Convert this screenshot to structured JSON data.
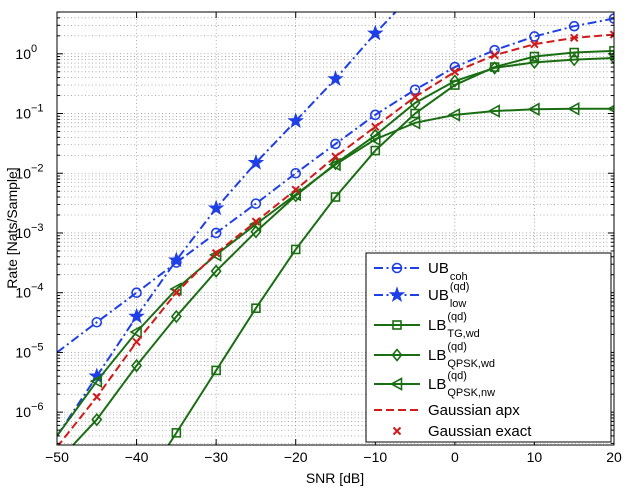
{
  "chart_data": {
    "type": "line",
    "title": "",
    "xlabel": "SNR [dB]",
    "ylabel": "Rate [Nats/Sample]",
    "xlim": [
      -50,
      20
    ],
    "ylim_log10": [
      -6.55,
      0.7
    ],
    "yscale": "log",
    "grid": true,
    "legend_position": "bottom-right",
    "x_ticks": [
      -50,
      -40,
      -30,
      -20,
      -10,
      0,
      10,
      20
    ],
    "x_tick_labels": [
      "−50",
      "−40",
      "−30",
      "−20",
      "−10",
      "0",
      "10",
      "20"
    ],
    "y_tick_exponents": [
      -6,
      -5,
      -4,
      -3,
      -2,
      -1,
      0
    ],
    "y_tick_base": "10",
    "series": [
      {
        "name": "UB",
        "sub": "coh",
        "sup": "",
        "color": "#1f3fe6",
        "dash": "dashdot",
        "marker": "circle",
        "line_x": [
          -50,
          -45,
          -40,
          -35,
          -30,
          -25,
          -20,
          -15,
          -10,
          -5,
          0,
          5,
          10,
          15,
          20
        ],
        "line_y": [
          1e-05,
          3.2e-05,
          0.0001,
          0.00032,
          0.001,
          0.0031,
          0.01,
          0.031,
          0.095,
          0.25,
          0.6,
          1.15,
          1.95,
          2.9,
          3.9
        ],
        "marker_x": [
          -45,
          -40,
          -35,
          -30,
          -25,
          -20,
          -15,
          -10,
          -5,
          0,
          5,
          10,
          15,
          20
        ],
        "marker_y": [
          3.2e-05,
          0.0001,
          0.00032,
          0.001,
          0.0031,
          0.01,
          0.031,
          0.095,
          0.25,
          0.6,
          1.15,
          1.95,
          2.9,
          3.9
        ]
      },
      {
        "name": "UB",
        "sub": "low",
        "sup": "(qd)",
        "color": "#1f3fe6",
        "dash": "dashdot",
        "marker": "star",
        "line_x": [
          -50,
          -45,
          -40,
          -35,
          -30,
          -25,
          -20,
          -15,
          -10,
          -6
        ],
        "line_y": [
          4e-07,
          4e-06,
          4e-05,
          0.00035,
          0.0026,
          0.015,
          0.075,
          0.38,
          2.2,
          8.0
        ],
        "marker_x": [
          -45,
          -40,
          -35,
          -30,
          -25,
          -20,
          -15,
          -10
        ],
        "marker_y": [
          4e-06,
          4e-05,
          0.00035,
          0.0026,
          0.015,
          0.075,
          0.38,
          2.2
        ]
      },
      {
        "name": "LB",
        "sub": "TG,wd",
        "sup": "(qd)",
        "color": "#1a6e12",
        "dash": "solid",
        "marker": "square",
        "line_x": [
          -36,
          -35,
          -30,
          -25,
          -20,
          -15,
          -10,
          -5,
          0,
          5,
          10,
          15,
          20
        ],
        "line_y": [
          2.8e-07,
          4.5e-07,
          5e-06,
          5.5e-05,
          0.00053,
          0.004,
          0.024,
          0.1,
          0.3,
          0.6,
          0.9,
          1.05,
          1.12
        ],
        "marker_x": [
          -35,
          -30,
          -25,
          -20,
          -15,
          -10,
          -5,
          0,
          5,
          10,
          15,
          20
        ],
        "marker_y": [
          4.5e-07,
          5e-06,
          5.5e-05,
          0.00053,
          0.004,
          0.024,
          0.1,
          0.3,
          0.6,
          0.9,
          1.05,
          1.12
        ]
      },
      {
        "name": "LB",
        "sub": "QPSK,wd",
        "sup": "(qd)",
        "color": "#1a6e12",
        "dash": "solid",
        "marker": "diamond",
        "line_x": [
          -48,
          -45,
          -40,
          -35,
          -30,
          -25,
          -20,
          -15,
          -10,
          -5,
          0,
          5,
          10,
          15,
          20
        ],
        "line_y": [
          2.8e-07,
          7.5e-07,
          6e-06,
          4e-05,
          0.00023,
          0.00105,
          0.0042,
          0.0145,
          0.043,
          0.15,
          0.35,
          0.58,
          0.72,
          0.8,
          0.85
        ],
        "marker_x": [
          -45,
          -40,
          -35,
          -30,
          -25,
          -20,
          -15,
          -10,
          -5,
          0,
          5,
          10,
          15,
          20
        ],
        "marker_y": [
          7.5e-07,
          6e-06,
          4e-05,
          0.00023,
          0.00105,
          0.0042,
          0.0145,
          0.043,
          0.15,
          0.35,
          0.58,
          0.72,
          0.8,
          0.85
        ]
      },
      {
        "name": "LB",
        "sub": "QPSK,nw",
        "sup": "(qd)",
        "color": "#1a6e12",
        "dash": "solid",
        "marker": "triangle-left",
        "line_x": [
          -50,
          -45,
          -40,
          -35,
          -30,
          -25,
          -20,
          -15,
          -10,
          -5,
          0,
          5,
          10,
          15,
          20
        ],
        "line_y": [
          4e-07,
          3.3e-06,
          2.2e-05,
          0.000115,
          0.00043,
          0.0014,
          0.0044,
          0.014,
          0.037,
          0.07,
          0.095,
          0.11,
          0.118,
          0.12,
          0.12
        ],
        "marker_x": [
          -45,
          -40,
          -35,
          -30,
          -25,
          -20,
          -15,
          -10,
          -5,
          0,
          5,
          10,
          15,
          20
        ],
        "marker_y": [
          3.3e-06,
          2.2e-05,
          0.000115,
          0.00043,
          0.0014,
          0.0044,
          0.014,
          0.037,
          0.07,
          0.095,
          0.11,
          0.118,
          0.12,
          0.12
        ]
      },
      {
        "name": "Gaussian apx",
        "sub": "",
        "sup": "",
        "color": "#d11a1a",
        "dash": "dashed",
        "marker": "none",
        "line_x": [
          -50,
          -45,
          -40,
          -35,
          -30,
          -25,
          -20,
          -15,
          -10,
          -5,
          0,
          5,
          10,
          15,
          20
        ],
        "line_y": [
          2.6e-07,
          1.8e-06,
          1.5e-05,
          0.0001,
          0.00046,
          0.00155,
          0.0053,
          0.019,
          0.06,
          0.19,
          0.5,
          0.95,
          1.45,
          1.85,
          2.1
        ],
        "marker_x": [],
        "marker_y": []
      },
      {
        "name": "Gaussian exact",
        "sub": "",
        "sup": "",
        "color": "#d11a1a",
        "dash": "none",
        "marker": "x",
        "line_x": [],
        "line_y": [],
        "marker_x": [
          -45,
          -40,
          -35,
          -30,
          -25,
          -20,
          -15,
          -10,
          -5,
          0,
          5,
          10,
          15,
          20
        ],
        "marker_y": [
          1.8e-06,
          1.5e-05,
          0.0001,
          0.00046,
          0.00155,
          0.0053,
          0.019,
          0.06,
          0.19,
          0.5,
          0.95,
          1.45,
          1.85,
          2.1
        ]
      }
    ]
  }
}
